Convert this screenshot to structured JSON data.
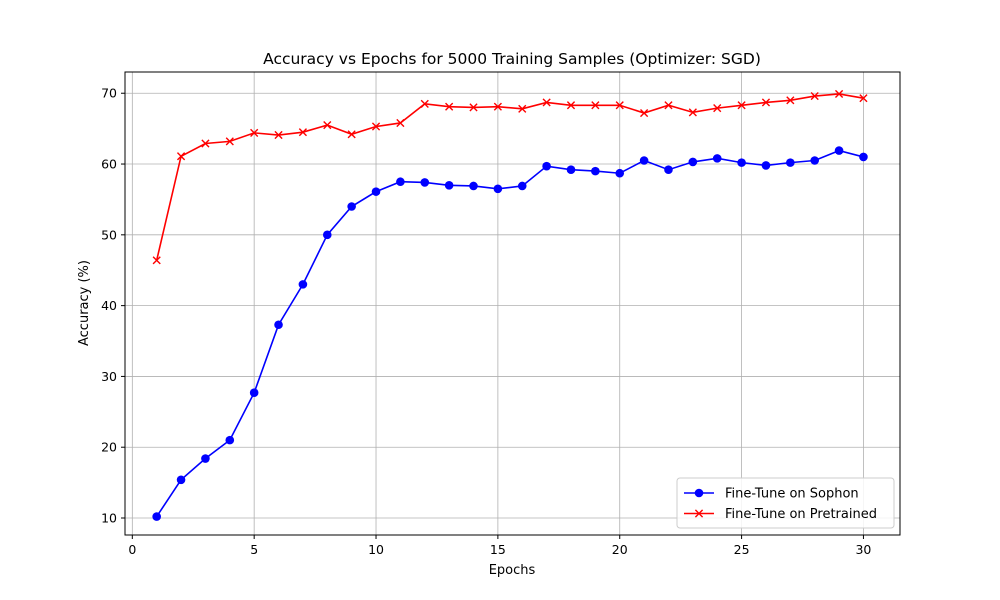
{
  "chart_data": {
    "type": "line",
    "title": "Accuracy vs Epochs for 5000 Training Samples (Optimizer: SGD)",
    "xlabel": "Epochs",
    "ylabel": "Accuracy (%)",
    "xlim": [
      -0.3,
      31.5
    ],
    "ylim": [
      7.6,
      73.0
    ],
    "xticks": [
      0,
      5,
      10,
      15,
      20,
      25,
      30
    ],
    "yticks": [
      10,
      20,
      30,
      40,
      50,
      60,
      70
    ],
    "grid": true,
    "legend_position": "lower-right",
    "x": [
      1,
      2,
      3,
      4,
      5,
      6,
      7,
      8,
      9,
      10,
      11,
      12,
      13,
      14,
      15,
      16,
      17,
      18,
      19,
      20,
      21,
      22,
      23,
      24,
      25,
      26,
      27,
      28,
      29,
      30
    ],
    "series": [
      {
        "name": "Fine-Tune on Sophon",
        "color": "#0000ff",
        "marker": "circle",
        "values": [
          10.2,
          15.4,
          18.4,
          21.0,
          27.7,
          37.3,
          43.0,
          50.0,
          54.0,
          56.1,
          57.5,
          57.4,
          57.0,
          56.9,
          56.5,
          56.9,
          59.7,
          59.2,
          59.0,
          58.7,
          60.5,
          59.2,
          60.3,
          60.8,
          60.2,
          59.8,
          60.2,
          60.5,
          61.9,
          61.0
        ]
      },
      {
        "name": "Fine-Tune on Pretrained",
        "color": "#ff0000",
        "marker": "x",
        "values": [
          46.4,
          61.1,
          62.9,
          63.2,
          64.4,
          64.1,
          64.5,
          65.5,
          64.2,
          65.3,
          65.8,
          68.5,
          68.1,
          68.0,
          68.1,
          67.8,
          68.7,
          68.3,
          68.3,
          68.3,
          67.2,
          68.3,
          67.3,
          67.9,
          68.3,
          68.7,
          69.0,
          69.6,
          69.9,
          69.3
        ]
      }
    ]
  }
}
